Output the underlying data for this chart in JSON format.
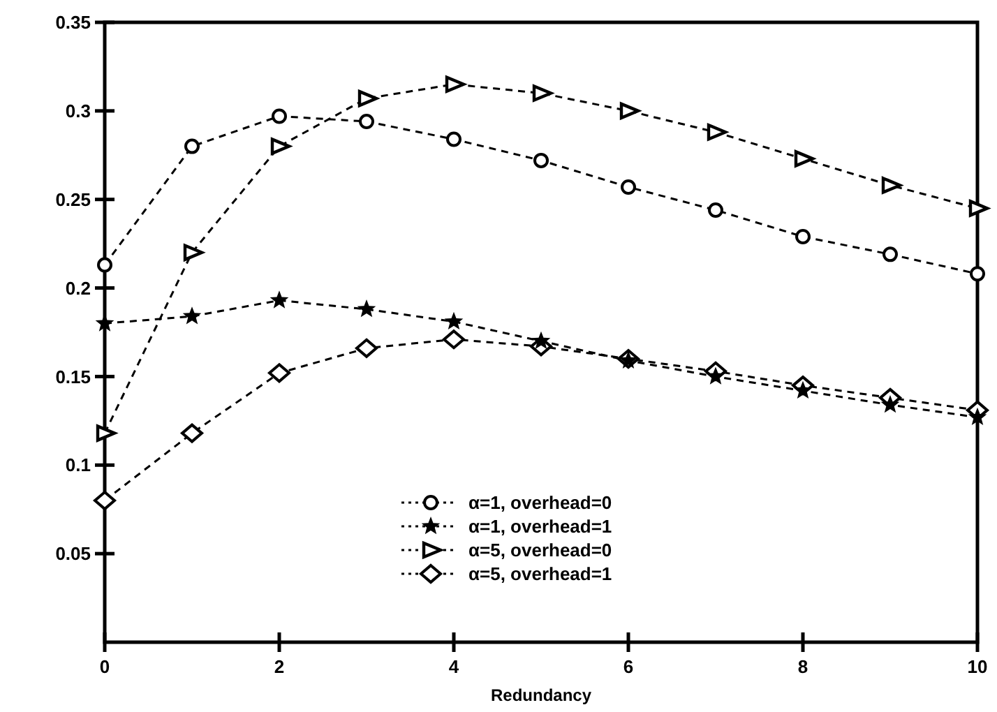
{
  "chart_data": {
    "type": "line",
    "xlabel": "Redundancy",
    "x": [
      0,
      1,
      2,
      3,
      4,
      5,
      6,
      7,
      8,
      9,
      10
    ],
    "xlim": [
      0,
      10
    ],
    "xticks": [
      0,
      2,
      4,
      6,
      8,
      10
    ],
    "ylim": [
      0,
      0.35
    ],
    "yticks": [
      0.05,
      0.1,
      0.15,
      0.2,
      0.25,
      0.3,
      0.35
    ],
    "grid": false,
    "legend": "bottom",
    "line_style": "dashed",
    "series": [
      {
        "name": "α=1, overhead=0",
        "color": "#000000",
        "marker": "circle",
        "values": [
          0.213,
          0.28,
          0.297,
          0.294,
          0.284,
          0.272,
          0.257,
          0.244,
          0.229,
          0.219,
          0.208
        ]
      },
      {
        "name": "α=1, overhead=1",
        "color": "#000000",
        "marker": "star",
        "values": [
          0.18,
          0.184,
          0.193,
          0.188,
          0.181,
          0.17,
          0.159,
          0.15,
          0.142,
          0.134,
          0.127
        ]
      },
      {
        "name": "α=5, overhead=0",
        "color": "#000000",
        "marker": "triangle",
        "values": [
          0.118,
          0.22,
          0.28,
          0.307,
          0.315,
          0.31,
          0.3,
          0.288,
          0.273,
          0.258,
          0.245
        ]
      },
      {
        "name": "α=5, overhead=1",
        "color": "#000000",
        "marker": "diamond",
        "values": [
          0.08,
          0.118,
          0.152,
          0.166,
          0.171,
          0.167,
          0.16,
          0.153,
          0.145,
          0.138,
          0.131
        ]
      }
    ]
  }
}
